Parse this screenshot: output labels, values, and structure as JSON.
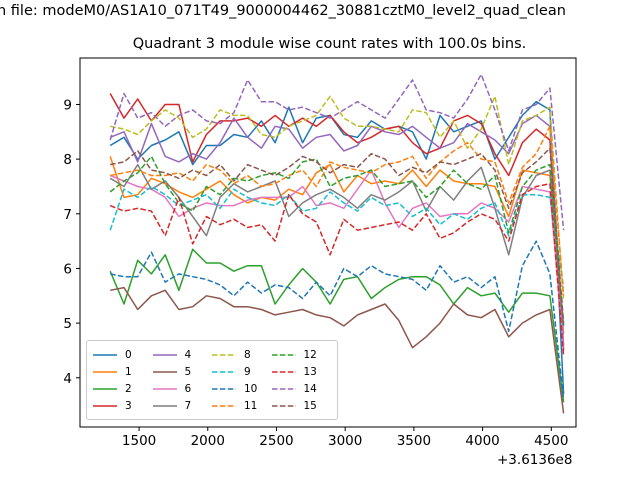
{
  "suptitle": "n file: modeM0/AS1A10_071T49_9000004462_30881cztM0_level2_quad_clean",
  "chart_data": {
    "type": "line",
    "title": "Quadrant 3 module wise count rates with 100.0s bins.",
    "xlabel": "",
    "ylabel": "",
    "x_offset_label": "+3.6136e8",
    "xlim": [
      1070,
      4680
    ],
    "ylim": [
      3.1,
      9.85
    ],
    "xticks": [
      1500,
      2000,
      2500,
      3000,
      3500,
      4000,
      4500
    ],
    "yticks": [
      4,
      5,
      6,
      7,
      8,
      9
    ],
    "grid": false,
    "legend_position": "lower-left",
    "x": [
      1290,
      1390,
      1490,
      1590,
      1690,
      1790,
      1890,
      1990,
      2090,
      2190,
      2290,
      2390,
      2490,
      2590,
      2690,
      2790,
      2890,
      2990,
      3090,
      3190,
      3290,
      3390,
      3490,
      3590,
      3690,
      3790,
      3890,
      3990,
      4090,
      4190,
      4290,
      4390,
      4490,
      4590
    ],
    "series": [
      {
        "name": "0",
        "color": "#1f77b4",
        "dash": "solid",
        "values": [
          8.25,
          8.4,
          8.0,
          8.25,
          8.35,
          8.5,
          7.9,
          8.25,
          8.25,
          8.45,
          8.4,
          8.7,
          8.3,
          8.95,
          8.3,
          8.75,
          8.8,
          8.45,
          8.4,
          8.7,
          8.55,
          8.6,
          8.5,
          8.0,
          8.8,
          8.5,
          8.6,
          8.7,
          8.0,
          8.4,
          8.8,
          9.05,
          8.9,
          3.7
        ]
      },
      {
        "name": "1",
        "color": "#ff7f0e",
        "dash": "solid",
        "values": [
          8.05,
          7.3,
          7.35,
          7.65,
          7.55,
          7.4,
          7.3,
          7.45,
          7.6,
          7.35,
          7.2,
          7.3,
          7.25,
          7.45,
          7.35,
          7.75,
          7.9,
          7.4,
          7.7,
          7.55,
          7.6,
          7.55,
          7.8,
          7.5,
          7.8,
          7.6,
          7.55,
          7.55,
          7.5,
          6.95,
          7.8,
          7.75,
          7.7,
          4.8
        ]
      },
      {
        "name": "2",
        "color": "#2ca02c",
        "dash": "solid",
        "values": [
          5.95,
          5.35,
          6.15,
          5.9,
          6.25,
          5.6,
          6.35,
          6.1,
          6.1,
          5.95,
          6.05,
          6.05,
          5.35,
          5.7,
          6.0,
          5.75,
          5.35,
          5.8,
          5.85,
          5.45,
          5.65,
          5.8,
          5.85,
          5.85,
          5.7,
          5.35,
          5.65,
          5.5,
          5.55,
          5.2,
          5.55,
          5.55,
          5.5,
          3.55
        ]
      },
      {
        "name": "3",
        "color": "#d62728",
        "dash": "solid",
        "values": [
          9.2,
          8.75,
          9.1,
          8.7,
          9.0,
          9.0,
          7.95,
          8.45,
          8.7,
          8.7,
          8.75,
          8.6,
          8.8,
          8.6,
          8.75,
          8.6,
          8.8,
          8.5,
          8.3,
          8.4,
          8.55,
          8.6,
          8.3,
          8.1,
          8.2,
          8.7,
          8.8,
          8.65,
          8.1,
          7.7,
          8.3,
          8.55,
          8.35,
          4.5
        ]
      },
      {
        "name": "4",
        "color": "#9467bd",
        "dash": "solid",
        "values": [
          8.4,
          8.5,
          7.95,
          8.65,
          8.05,
          7.95,
          8.1,
          8.0,
          8.3,
          8.75,
          8.4,
          8.2,
          8.6,
          8.55,
          8.2,
          8.4,
          8.45,
          8.15,
          8.25,
          8.6,
          8.5,
          8.45,
          8.6,
          8.4,
          8.2,
          8.3,
          8.65,
          8.5,
          8.35,
          8.1,
          8.65,
          8.8,
          8.6,
          4.6
        ]
      },
      {
        "name": "5",
        "color": "#8c564b",
        "dash": "solid",
        "values": [
          5.6,
          5.65,
          5.25,
          5.5,
          5.6,
          5.25,
          5.3,
          5.5,
          5.45,
          5.3,
          5.3,
          5.25,
          5.15,
          5.2,
          5.25,
          5.15,
          5.1,
          4.95,
          5.15,
          5.25,
          5.35,
          5.05,
          4.55,
          4.75,
          5.0,
          5.35,
          5.15,
          5.1,
          5.25,
          4.75,
          5.0,
          5.15,
          5.25,
          3.35
        ]
      },
      {
        "name": "6",
        "color": "#e377c2",
        "dash": "solid",
        "values": [
          7.7,
          7.6,
          7.5,
          7.45,
          7.3,
          6.95,
          7.1,
          7.2,
          7.15,
          7.15,
          7.25,
          7.3,
          7.3,
          7.3,
          7.5,
          7.15,
          7.2,
          7.1,
          7.45,
          7.8,
          7.2,
          6.75,
          7.1,
          7.2,
          6.95,
          7.0,
          7.0,
          7.2,
          7.1,
          6.85,
          7.5,
          7.45,
          7.4,
          4.55
        ]
      },
      {
        "name": "7",
        "color": "#7f7f7f",
        "dash": "solid",
        "values": [
          7.65,
          7.5,
          7.9,
          7.45,
          7.6,
          7.3,
          6.95,
          6.6,
          7.3,
          7.55,
          7.4,
          7.5,
          7.6,
          6.95,
          7.2,
          7.35,
          7.45,
          7.3,
          7.1,
          7.35,
          7.25,
          7.4,
          7.6,
          7.05,
          7.5,
          7.25,
          7.6,
          7.85,
          7.1,
          6.25,
          7.3,
          7.7,
          7.8,
          4.95
        ]
      },
      {
        "name": "8",
        "color": "#bcbd22",
        "dash": "dashed",
        "values": [
          8.6,
          8.55,
          8.45,
          8.7,
          8.9,
          8.75,
          8.4,
          8.55,
          8.9,
          8.8,
          8.8,
          8.45,
          8.4,
          8.6,
          8.7,
          8.8,
          9.15,
          8.75,
          8.6,
          8.6,
          8.55,
          8.5,
          8.9,
          8.85,
          8.4,
          8.7,
          8.2,
          8.55,
          9.15,
          7.9,
          8.7,
          8.8,
          8.95,
          5.4
        ]
      },
      {
        "name": "9",
        "color": "#17becf",
        "dash": "dashed",
        "values": [
          6.7,
          7.45,
          7.3,
          7.5,
          7.35,
          7.15,
          7.25,
          7.35,
          7.1,
          7.45,
          7.3,
          7.2,
          7.15,
          7.35,
          7.05,
          7.1,
          7.4,
          7.2,
          7.05,
          7.3,
          7.15,
          7.2,
          6.95,
          7.1,
          6.8,
          7.0,
          6.9,
          7.1,
          7.2,
          6.6,
          7.35,
          7.35,
          7.3,
          5.65
        ]
      },
      {
        "name": "10",
        "color": "#1f77b4",
        "dash": "dashed",
        "values": [
          5.9,
          5.85,
          5.85,
          6.3,
          5.75,
          5.9,
          5.85,
          5.8,
          5.7,
          5.5,
          5.75,
          5.55,
          5.7,
          5.65,
          5.45,
          5.75,
          5.5,
          6.0,
          5.85,
          6.05,
          5.9,
          5.85,
          5.8,
          5.6,
          6.05,
          5.75,
          5.85,
          5.65,
          5.85,
          4.85,
          6.05,
          6.5,
          5.9,
          3.6
        ]
      },
      {
        "name": "11",
        "color": "#ff7f0e",
        "dash": "dashed",
        "values": [
          7.7,
          7.75,
          7.8,
          7.7,
          7.7,
          7.75,
          7.6,
          7.9,
          7.8,
          7.55,
          7.7,
          7.5,
          7.55,
          7.7,
          7.8,
          7.5,
          7.95,
          7.85,
          7.8,
          7.75,
          7.9,
          7.95,
          8.05,
          7.65,
          7.95,
          8.15,
          8.3,
          8.0,
          7.95,
          7.2,
          7.85,
          8.1,
          8.6,
          5.5
        ]
      },
      {
        "name": "12",
        "color": "#2ca02c",
        "dash": "dashed",
        "values": [
          7.4,
          7.6,
          7.75,
          8.05,
          7.55,
          7.2,
          7.05,
          7.5,
          7.35,
          7.65,
          7.6,
          7.7,
          7.75,
          7.65,
          7.95,
          8.0,
          7.5,
          7.65,
          7.7,
          7.8,
          7.5,
          7.55,
          7.6,
          7.3,
          7.5,
          7.8,
          7.55,
          7.45,
          7.7,
          6.65,
          7.5,
          7.8,
          7.9,
          4.95
        ]
      },
      {
        "name": "13",
        "color": "#d62728",
        "dash": "dashed",
        "values": [
          7.15,
          7.05,
          7.1,
          7.05,
          6.6,
          7.3,
          6.45,
          6.95,
          6.8,
          6.9,
          6.75,
          6.8,
          6.5,
          7.35,
          7.0,
          6.85,
          6.25,
          6.9,
          6.7,
          6.75,
          6.8,
          6.85,
          6.7,
          7.0,
          6.55,
          6.65,
          6.85,
          7.0,
          6.9,
          6.5,
          7.35,
          7.5,
          7.55,
          4.4
        ]
      },
      {
        "name": "14",
        "color": "#9467bd",
        "dash": "dashed",
        "values": [
          8.35,
          9.2,
          8.75,
          8.85,
          8.6,
          8.8,
          8.9,
          8.7,
          8.65,
          8.85,
          9.45,
          9.05,
          9.05,
          8.9,
          8.95,
          8.85,
          8.75,
          8.9,
          9.05,
          8.9,
          8.75,
          9.1,
          9.45,
          8.9,
          8.85,
          8.75,
          9.1,
          9.55,
          8.9,
          8.15,
          8.9,
          9.0,
          9.3,
          6.7
        ]
      },
      {
        "name": "15",
        "color": "#8c564b",
        "dash": "dashed",
        "values": [
          7.9,
          7.95,
          8.15,
          7.8,
          7.75,
          7.65,
          7.8,
          7.7,
          7.9,
          7.6,
          7.9,
          7.8,
          7.7,
          7.85,
          8.05,
          7.95,
          7.75,
          7.9,
          7.85,
          8.1,
          8.0,
          7.7,
          7.85,
          7.75,
          7.95,
          7.9,
          8.0,
          8.1,
          7.8,
          7.1,
          7.75,
          7.95,
          8.2,
          5.0
        ]
      }
    ]
  }
}
